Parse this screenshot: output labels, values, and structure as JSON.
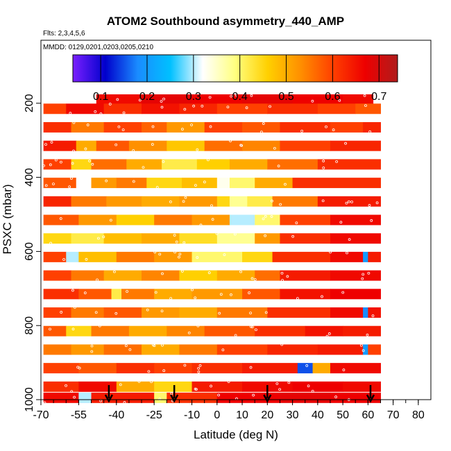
{
  "chart_data": {
    "type": "heatmap",
    "title": "ATOM2 Southbound asymmetry_440_AMP",
    "subtitle_flights": "Flts: 2,3,4,5,6",
    "subtitle_dates": "MMDD: 0129,0201,0203,0205,0210",
    "xlabel": "Latitude (deg N)",
    "ylabel": "PSXC (mbar)",
    "xlim": [
      -70,
      85
    ],
    "ylim": [
      1000,
      30
    ],
    "x_ticks": [
      -70,
      -55,
      -40,
      -25,
      -10,
      0,
      10,
      20,
      30,
      40,
      50,
      60,
      70,
      80
    ],
    "x_tick_labels": [
      "-70",
      "-55",
      "-40",
      "-25",
      "-10",
      "0",
      "10",
      "20",
      "30",
      "40",
      "50",
      "60",
      "70",
      "80"
    ],
    "y_ticks": [
      200,
      400,
      600,
      800,
      1000
    ],
    "y_tick_labels": [
      "200",
      "400",
      "600",
      "800",
      "1000"
    ],
    "colorbar": {
      "range": [
        0.04,
        0.74
      ],
      "ticks": [
        0.1,
        0.2,
        0.3,
        0.4,
        0.5,
        0.6,
        0.7
      ],
      "tick_labels": [
        "0.1",
        "0.2",
        "0.3",
        "0.4",
        "0.5",
        "0.6",
        "0.7"
      ],
      "colors": [
        "#7a1fff",
        "#0000cc",
        "#1a8cff",
        "#00c0ff",
        "#ffffff",
        "#ffff80",
        "#ffd000",
        "#ff9000",
        "#ff4000",
        "#ee0000",
        "#b01c1c"
      ]
    },
    "arrow_latitudes": [
      -43,
      -17,
      20,
      61
    ],
    "pressure_levels": [
      190,
      215,
      265,
      290,
      315,
      340,
      365,
      390,
      415,
      440,
      465,
      490,
      540,
      590,
      640,
      690,
      740,
      790,
      840,
      890,
      940,
      990
    ],
    "rows": [
      {
        "p": 190,
        "lat": [
          -48,
          62
        ],
        "segments": [
          [
            -48,
            0.66
          ],
          [
            -30,
            0.68
          ],
          [
            -10,
            0.67
          ],
          [
            10,
            0.68
          ],
          [
            30,
            0.67
          ],
          [
            50,
            0.66
          ]
        ]
      },
      {
        "p": 215,
        "lat": [
          -69,
          65
        ],
        "segments": [
          [
            -69,
            0.6
          ],
          [
            -60,
            0.66
          ],
          [
            -45,
            0.62
          ],
          [
            -30,
            0.65
          ],
          [
            -15,
            0.63
          ],
          [
            0,
            0.6
          ],
          [
            20,
            0.62
          ],
          [
            40,
            0.6
          ],
          [
            55,
            0.58
          ]
        ]
      },
      {
        "p": 265,
        "lat": [
          -69,
          65
        ],
        "segments": [
          [
            -69,
            0.62
          ],
          [
            -58,
            0.55
          ],
          [
            -45,
            0.6
          ],
          [
            -30,
            0.57
          ],
          [
            -20,
            0.52
          ],
          [
            -5,
            0.6
          ],
          [
            10,
            0.58
          ],
          [
            25,
            0.62
          ],
          [
            45,
            0.6
          ],
          [
            58,
            0.63
          ]
        ]
      },
      {
        "p": 315,
        "lat": [
          -69,
          65
        ],
        "segments": [
          [
            -69,
            0.64
          ],
          [
            -56,
            0.5
          ],
          [
            -48,
            0.58
          ],
          [
            -35,
            0.53
          ],
          [
            -20,
            0.47
          ],
          [
            -5,
            0.56
          ],
          [
            10,
            0.54
          ],
          [
            25,
            0.6
          ],
          [
            45,
            0.63
          ]
        ]
      },
      {
        "p": 365,
        "lat": [
          -69,
          65
        ],
        "segments": [
          [
            -69,
            0.6
          ],
          [
            -58,
            0.45
          ],
          [
            -50,
            0.56
          ],
          [
            -36,
            0.5
          ],
          [
            -22,
            0.42
          ],
          [
            -8,
            0.46
          ],
          [
            5,
            0.5
          ],
          [
            20,
            0.56
          ],
          [
            40,
            0.62
          ]
        ]
      },
      {
        "p": 415,
        "lat": [
          -69,
          65
        ],
        "segments": [
          [
            -69,
            0.58
          ],
          [
            -56,
            0.32
          ],
          [
            -50,
            0.52
          ],
          [
            -40,
            0.55
          ],
          [
            -28,
            0.45
          ],
          [
            -14,
            0.48
          ],
          [
            0,
            0.33
          ],
          [
            5,
            0.4
          ],
          [
            15,
            0.5
          ],
          [
            30,
            0.62
          ]
        ]
      },
      {
        "p": 465,
        "lat": [
          -69,
          65
        ],
        "segments": [
          [
            -69,
            0.63
          ],
          [
            -58,
            0.55
          ],
          [
            -44,
            0.52
          ],
          [
            -30,
            0.5
          ],
          [
            -15,
            0.52
          ],
          [
            0,
            0.45
          ],
          [
            5,
            0.38
          ],
          [
            12,
            0.42
          ],
          [
            22,
            0.55
          ],
          [
            40,
            0.64
          ]
        ]
      },
      {
        "p": 515,
        "lat": [
          -69,
          65
        ],
        "segments": [
          [
            -69,
            0.58
          ],
          [
            -55,
            0.52
          ],
          [
            -40,
            0.46
          ],
          [
            -25,
            0.55
          ],
          [
            -10,
            0.52
          ],
          [
            5,
            0.3
          ],
          [
            15,
            0.4
          ],
          [
            25,
            0.6
          ],
          [
            45,
            0.66
          ]
        ]
      },
      {
        "p": 565,
        "lat": [
          -69,
          65
        ],
        "segments": [
          [
            -69,
            0.45
          ],
          [
            -58,
            0.42
          ],
          [
            -45,
            0.48
          ],
          [
            -30,
            0.5
          ],
          [
            -15,
            0.44
          ],
          [
            0,
            0.38
          ],
          [
            15,
            0.52
          ],
          [
            25,
            0.62
          ],
          [
            45,
            0.66
          ]
        ]
      },
      {
        "p": 615,
        "lat": [
          -69,
          65
        ],
        "segments": [
          [
            -69,
            0.6
          ],
          [
            -60,
            0.3
          ],
          [
            -55,
            0.48
          ],
          [
            -40,
            0.55
          ],
          [
            -25,
            0.52
          ],
          [
            -10,
            0.4
          ],
          [
            10,
            0.45
          ],
          [
            22,
            0.62
          ],
          [
            45,
            0.66
          ],
          [
            58,
            0.2
          ],
          [
            60,
            0.64
          ]
        ]
      },
      {
        "p": 665,
        "lat": [
          -69,
          65
        ],
        "segments": [
          [
            -69,
            0.6
          ],
          [
            -58,
            0.55
          ],
          [
            -45,
            0.5
          ],
          [
            -30,
            0.54
          ],
          [
            -15,
            0.46
          ],
          [
            0,
            0.5
          ],
          [
            15,
            0.56
          ],
          [
            25,
            0.64
          ],
          [
            45,
            0.66
          ]
        ]
      },
      {
        "p": 715,
        "lat": [
          -69,
          65
        ],
        "segments": [
          [
            -69,
            0.62
          ],
          [
            -55,
            0.58
          ],
          [
            -42,
            0.42
          ],
          [
            -38,
            0.55
          ],
          [
            -25,
            0.5
          ],
          [
            -10,
            0.52
          ],
          [
            10,
            0.58
          ],
          [
            25,
            0.65
          ],
          [
            45,
            0.67
          ]
        ]
      },
      {
        "p": 765,
        "lat": [
          -69,
          65
        ],
        "segments": [
          [
            -69,
            0.6
          ],
          [
            -58,
            0.55
          ],
          [
            -45,
            0.58
          ],
          [
            -30,
            0.52
          ],
          [
            -15,
            0.5
          ],
          [
            0,
            0.55
          ],
          [
            20,
            0.62
          ],
          [
            45,
            0.66
          ],
          [
            58,
            0.18
          ],
          [
            60,
            0.65
          ]
        ]
      },
      {
        "p": 815,
        "lat": [
          -69,
          65
        ],
        "segments": [
          [
            -69,
            0.58
          ],
          [
            -60,
            0.45
          ],
          [
            -50,
            0.55
          ],
          [
            -35,
            0.5
          ],
          [
            -20,
            0.54
          ],
          [
            -5,
            0.58
          ],
          [
            15,
            0.62
          ],
          [
            35,
            0.65
          ],
          [
            50,
            0.64
          ]
        ]
      },
      {
        "p": 865,
        "lat": [
          -69,
          65
        ],
        "segments": [
          [
            -69,
            0.55
          ],
          [
            -58,
            0.52
          ],
          [
            -45,
            0.56
          ],
          [
            -30,
            0.5
          ],
          [
            -15,
            0.55
          ],
          [
            0,
            0.6
          ],
          [
            20,
            0.63
          ],
          [
            40,
            0.64
          ],
          [
            58,
            0.2
          ],
          [
            60,
            0.6
          ]
        ]
      },
      {
        "p": 915,
        "lat": [
          -69,
          65
        ],
        "segments": [
          [
            -69,
            0.6
          ],
          [
            -55,
            0.58
          ],
          [
            -40,
            0.62
          ],
          [
            -25,
            0.6
          ],
          [
            -10,
            0.62
          ],
          [
            10,
            0.64
          ],
          [
            32,
            0.15
          ],
          [
            38,
            0.5
          ],
          [
            45,
            0.66
          ]
        ]
      },
      {
        "p": 965,
        "lat": [
          -69,
          65
        ],
        "segments": [
          [
            -69,
            0.62
          ],
          [
            -55,
            0.66
          ],
          [
            -40,
            0.5
          ],
          [
            -25,
            0.45
          ],
          [
            -10,
            0.64
          ],
          [
            10,
            0.66
          ],
          [
            30,
            0.67
          ],
          [
            50,
            0.66
          ]
        ]
      },
      {
        "p": 995,
        "lat": [
          -69,
          65
        ],
        "segments": [
          [
            -69,
            0.66
          ],
          [
            -55,
            0.3
          ],
          [
            -50,
            0.64
          ],
          [
            -25,
            0.4
          ],
          [
            -20,
            0.62
          ],
          [
            0,
            0.67
          ],
          [
            25,
            0.68
          ],
          [
            45,
            0.67
          ]
        ]
      }
    ]
  }
}
